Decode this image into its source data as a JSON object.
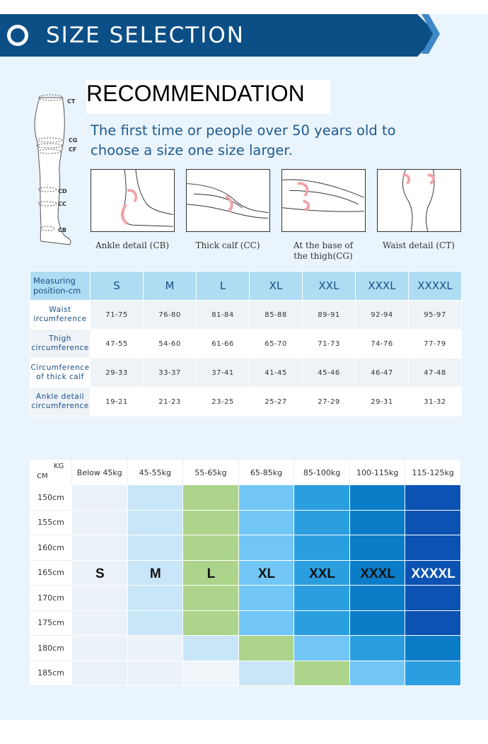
{
  "banner": {
    "title": "SIZE SELECTION"
  },
  "diagram": {
    "labels": [
      "CT",
      "CG",
      "CF",
      "CD",
      "CC",
      "CB"
    ]
  },
  "recommendation": {
    "title": "RECOMMENDATION",
    "text_line1": "The first time or people over 50 years old to",
    "text_line2": "choose a size one size larger."
  },
  "details": [
    {
      "label": "Ankle detail (CB)"
    },
    {
      "label": "Thick calf (CC)"
    },
    {
      "label_line1": "At the base of",
      "label_line2": "the thigh(CG)"
    },
    {
      "label": "Waist detail (CT)"
    }
  ],
  "size_table": {
    "header_line1": "Measuring",
    "header_line2": "position-cm",
    "sizes": [
      "S",
      "M",
      "L",
      "XL",
      "XXL",
      "XXXL",
      "XXXXL"
    ],
    "rows": [
      {
        "line1": "Waist",
        "line2": "ircumference",
        "values": [
          "71-75",
          "76-80",
          "81-84",
          "85-88",
          "89-91",
          "92-94",
          "95-97"
        ]
      },
      {
        "line1": "Thigh",
        "line2": "circumference",
        "values": [
          "47-55",
          "54-60",
          "61-66",
          "65-70",
          "71-73",
          "74-76",
          "77-79"
        ]
      },
      {
        "line1": "Circumference",
        "line2": "of thick calf",
        "values": [
          "29-33",
          "33-37",
          "37-41",
          "41-45",
          "45-46",
          "46-47",
          "47-48"
        ]
      },
      {
        "line1": "Ankle detail",
        "line2": "circumference",
        "values": [
          "19-21",
          "21-23",
          "23-25",
          "25-27",
          "27-29",
          "29-31",
          "31-32"
        ]
      }
    ]
  },
  "weight_chart": {
    "corner_kg": "KG",
    "corner_cm": "CM",
    "weights": [
      "Below 45kg",
      "45-55kg",
      "55-65kg",
      "65-85kg",
      "85-100kg",
      "100-115kg",
      "115-125kg"
    ],
    "heights": [
      "150cm",
      "155cm",
      "160cm",
      "165cm",
      "170cm",
      "175cm",
      "180cm",
      "185cm"
    ],
    "size_labels": [
      "S",
      "M",
      "L",
      "XL",
      "XXL",
      "XXXL",
      "XXXXL"
    ],
    "colors": {
      "S": "#ebf3f9",
      "M": "#c9e6f8",
      "L": "#acd48a",
      "XL": "#72c6f5",
      "XXL": "#2b9ee0",
      "XXXL": "#0b7cc7",
      "XXXXL": "#0b52b3",
      "blank": "#f1f6fa"
    },
    "cells": [
      [
        "S",
        "M",
        "L",
        "XL",
        "XXL",
        "XXXL",
        "XXXXL"
      ],
      [
        "S",
        "M",
        "L",
        "XL",
        "XXL",
        "XXXL",
        "XXXXL"
      ],
      [
        "S",
        "M",
        "L",
        "XL",
        "XXL",
        "XXXL",
        "XXXXL"
      ],
      [
        "S",
        "M",
        "L",
        "XL",
        "XXL",
        "XXXL",
        "XXXXL"
      ],
      [
        "S",
        "M",
        "L",
        "XL",
        "XXL",
        "XXXL",
        "XXXXL"
      ],
      [
        "S",
        "M",
        "L",
        "XL",
        "XXL",
        "XXXL",
        "XXXXL"
      ],
      [
        "S",
        "S",
        "M",
        "L",
        "XL",
        "XXL",
        "XXXL"
      ],
      [
        "S",
        "S",
        "blank",
        "M",
        "L",
        "XL",
        "XXL"
      ]
    ]
  }
}
